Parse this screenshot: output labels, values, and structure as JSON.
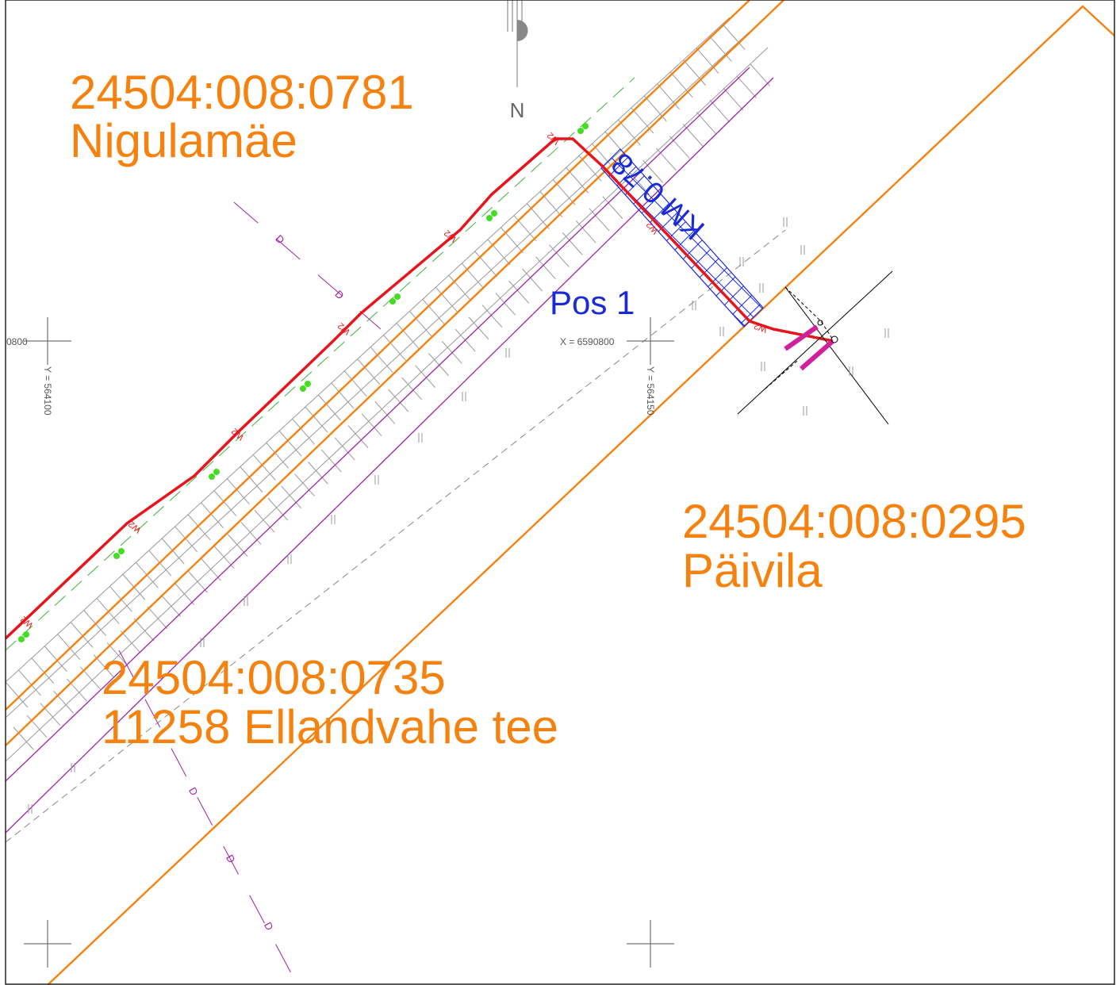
{
  "parcels": [
    {
      "id": "24504:008:0781",
      "name": "Nigulamäe"
    },
    {
      "id": "24504:008:0295",
      "name": "Päivila"
    },
    {
      "id": "24504:008:0735",
      "name": "11258 Ellandvahe tee"
    }
  ],
  "labels": {
    "position": "Pos 1",
    "culvert": "KM 0.78",
    "north": "N",
    "x_coord": "X = 6590800",
    "x_coord_left": "0800",
    "y_coord_left": "Y = 564100",
    "y_coord_right": "Y = 564150"
  },
  "line_codes": {
    "water": "W2",
    "drainage": "D"
  }
}
